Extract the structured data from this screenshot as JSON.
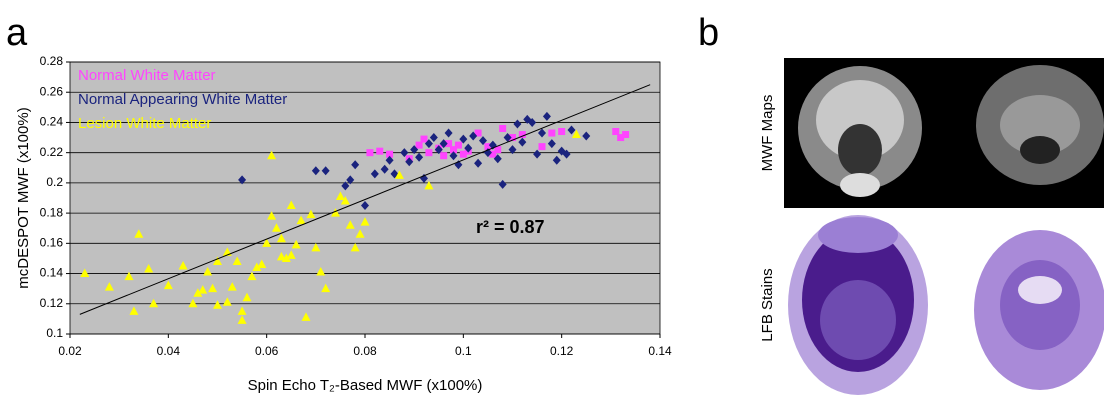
{
  "panel_labels": [
    "a",
    "b"
  ],
  "image_labels": [
    "MWF Maps",
    "LFB Stains"
  ],
  "chart_data": {
    "type": "scatter",
    "xlabel": "Spin Echo T₂-Based MWF (x100%)",
    "ylabel": "mcDESPOT MWF (x100%)",
    "annotation": "r² = 0.87",
    "xlim": [
      0.02,
      0.14
    ],
    "xticks": [
      0.02,
      0.04,
      0.06,
      0.08,
      0.1,
      0.12,
      0.14
    ],
    "ylim": [
      0.1,
      0.28
    ],
    "yticks": [
      0.1,
      0.12,
      0.14,
      0.16,
      0.18,
      0.2,
      0.22,
      0.24,
      0.26,
      0.28
    ],
    "grid": true,
    "legend": "upper left",
    "series": [
      {
        "name": "Normal White Matter",
        "color": "#ff44ff",
        "marker": "square",
        "x": [
          0.081,
          0.083,
          0.085,
          0.089,
          0.091,
          0.092,
          0.093,
          0.095,
          0.096,
          0.097,
          0.098,
          0.099,
          0.1,
          0.101,
          0.103,
          0.105,
          0.106,
          0.107,
          0.108,
          0.11,
          0.112,
          0.116,
          0.118,
          0.12,
          0.131,
          0.132,
          0.133
        ],
        "values": [
          0.22,
          0.221,
          0.219,
          0.216,
          0.225,
          0.229,
          0.22,
          0.223,
          0.218,
          0.226,
          0.222,
          0.225,
          0.219,
          0.221,
          0.233,
          0.224,
          0.219,
          0.222,
          0.236,
          0.23,
          0.232,
          0.224,
          0.233,
          0.234,
          0.234,
          0.23,
          0.232
        ]
      },
      {
        "name": "Normal Appearing White Matter",
        "color": "#1a237e",
        "marker": "diamond",
        "x": [
          0.055,
          0.07,
          0.072,
          0.076,
          0.077,
          0.078,
          0.08,
          0.082,
          0.084,
          0.085,
          0.086,
          0.088,
          0.089,
          0.09,
          0.091,
          0.092,
          0.093,
          0.094,
          0.095,
          0.096,
          0.097,
          0.098,
          0.099,
          0.1,
          0.101,
          0.102,
          0.103,
          0.104,
          0.105,
          0.106,
          0.107,
          0.108,
          0.109,
          0.11,
          0.111,
          0.112,
          0.113,
          0.114,
          0.115,
          0.116,
          0.117,
          0.118,
          0.119,
          0.12,
          0.121,
          0.122,
          0.125
        ],
        "values": [
          0.202,
          0.208,
          0.208,
          0.198,
          0.202,
          0.212,
          0.185,
          0.206,
          0.209,
          0.215,
          0.206,
          0.22,
          0.214,
          0.222,
          0.217,
          0.203,
          0.226,
          0.23,
          0.222,
          0.226,
          0.233,
          0.218,
          0.212,
          0.229,
          0.223,
          0.231,
          0.213,
          0.228,
          0.22,
          0.225,
          0.216,
          0.199,
          0.23,
          0.222,
          0.239,
          0.227,
          0.242,
          0.24,
          0.219,
          0.233,
          0.244,
          0.226,
          0.215,
          0.221,
          0.219,
          0.235,
          0.231
        ]
      },
      {
        "name": "Lesion White Matter",
        "color": "#ffff00",
        "marker": "triangle",
        "x": [
          0.023,
          0.028,
          0.032,
          0.033,
          0.034,
          0.036,
          0.037,
          0.04,
          0.043,
          0.045,
          0.046,
          0.047,
          0.048,
          0.049,
          0.05,
          0.05,
          0.052,
          0.052,
          0.053,
          0.054,
          0.055,
          0.055,
          0.056,
          0.057,
          0.058,
          0.059,
          0.06,
          0.061,
          0.061,
          0.062,
          0.063,
          0.063,
          0.064,
          0.065,
          0.065,
          0.066,
          0.067,
          0.068,
          0.069,
          0.07,
          0.071,
          0.072,
          0.074,
          0.075,
          0.076,
          0.077,
          0.078,
          0.079,
          0.08,
          0.087,
          0.093,
          0.123
        ],
        "values": [
          0.14,
          0.131,
          0.138,
          0.115,
          0.166,
          0.143,
          0.12,
          0.132,
          0.145,
          0.12,
          0.127,
          0.129,
          0.141,
          0.13,
          0.148,
          0.119,
          0.154,
          0.121,
          0.131,
          0.148,
          0.115,
          0.109,
          0.124,
          0.138,
          0.144,
          0.146,
          0.16,
          0.218,
          0.178,
          0.17,
          0.151,
          0.163,
          0.15,
          0.152,
          0.185,
          0.159,
          0.175,
          0.111,
          0.179,
          0.157,
          0.141,
          0.13,
          0.18,
          0.191,
          0.188,
          0.172,
          0.157,
          0.166,
          0.174,
          0.205,
          0.198,
          0.232
        ]
      }
    ],
    "fit_line": {
      "x": [
        0.022,
        0.138
      ],
      "values": [
        0.113,
        0.265
      ]
    }
  }
}
